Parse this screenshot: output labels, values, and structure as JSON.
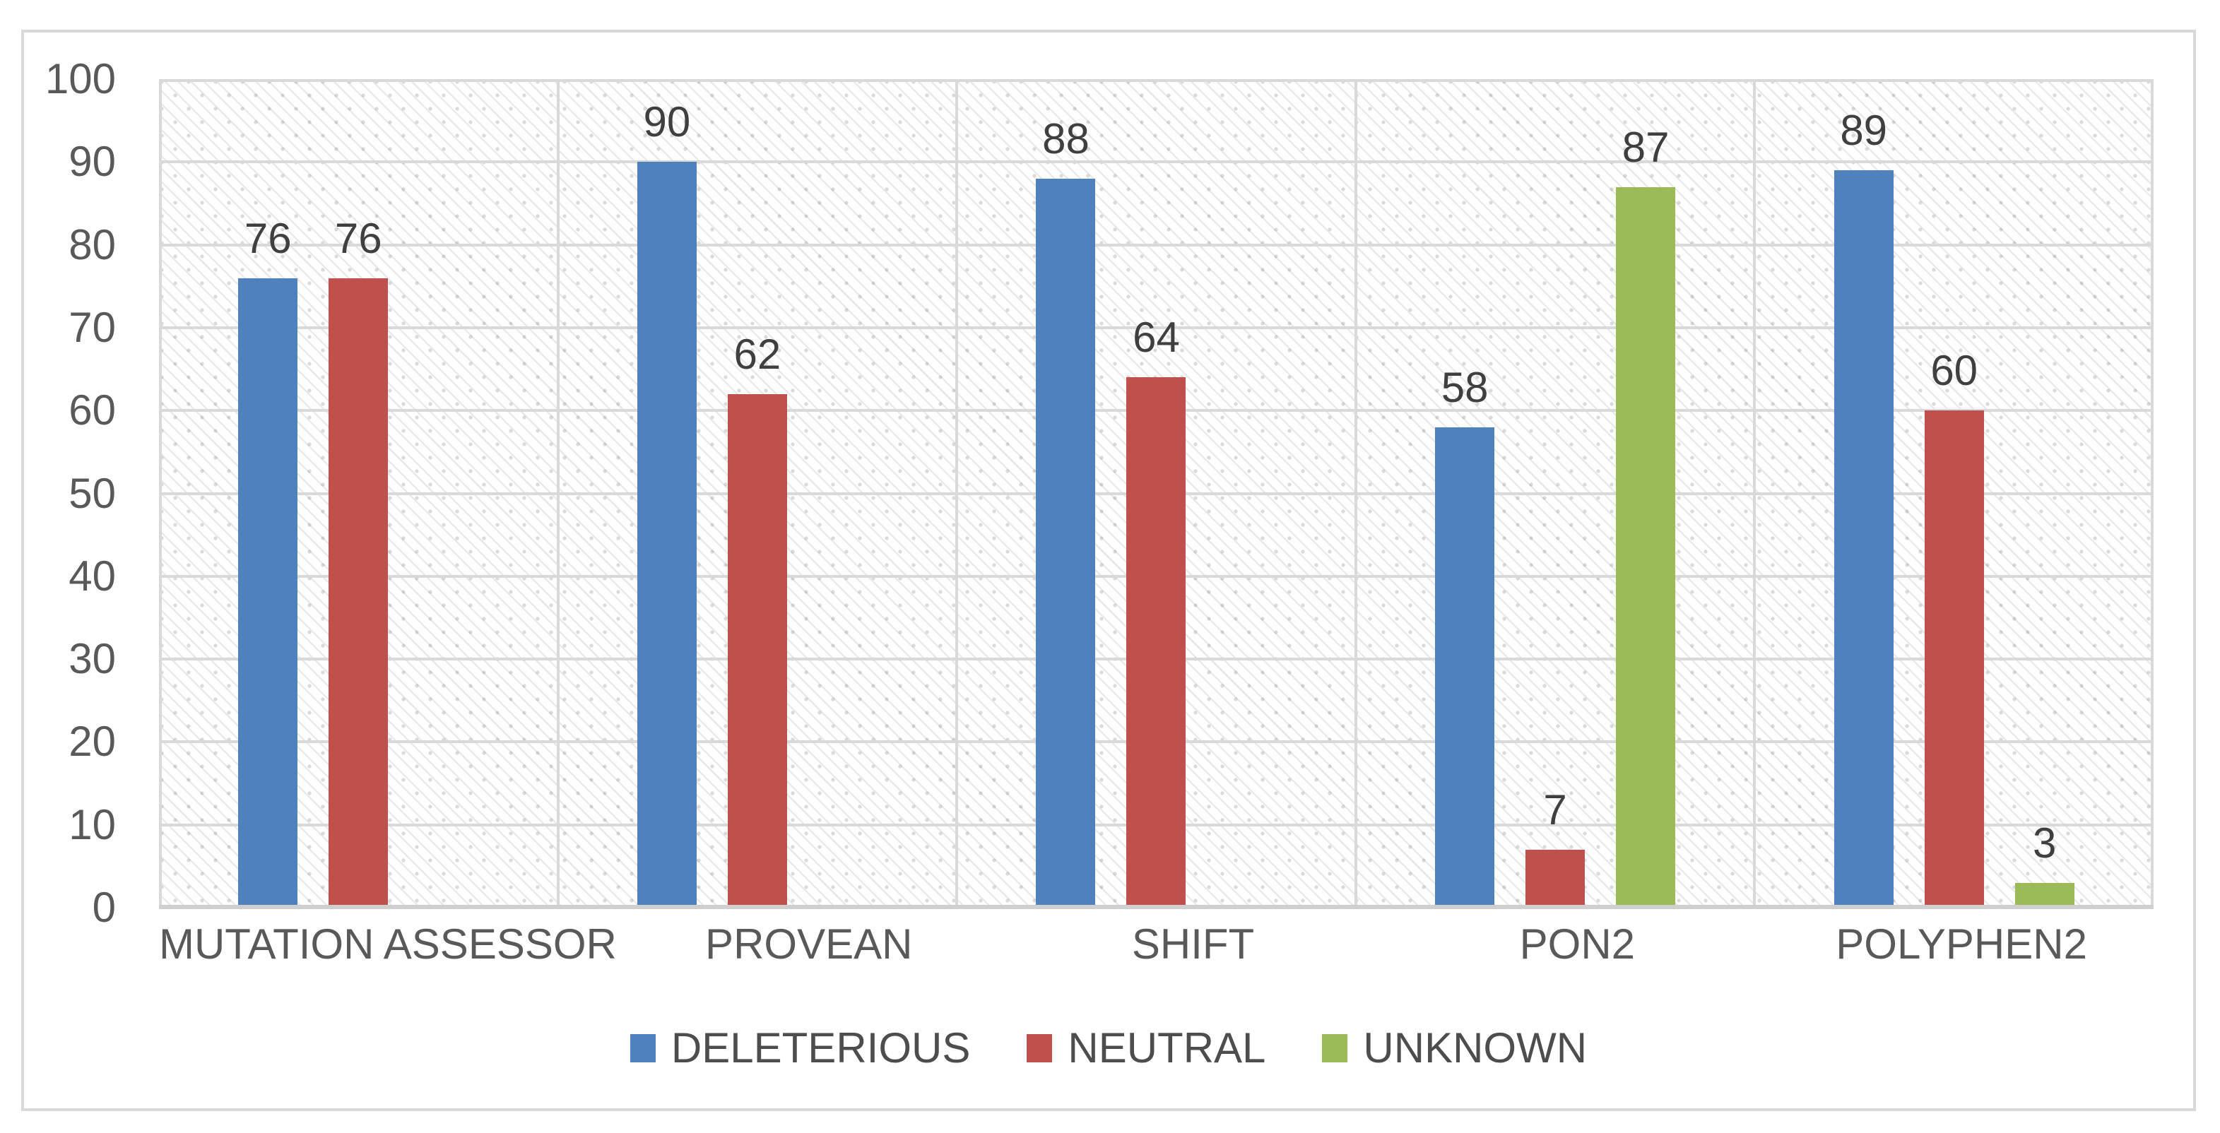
{
  "chart": {
    "background_color": "#ffffff",
    "frame_border_color": "#d9d9d9",
    "gridline_color": "#d9d9d9",
    "axis_line_color": "#cfcfcf",
    "tick_label_color": "#595959",
    "data_label_color": "#3f3f3f"
  },
  "chart_data": {
    "type": "bar",
    "title": "",
    "categories": [
      "MUTATION ASSESSOR",
      "PROVEAN",
      "SHIFT",
      "PON2",
      "POLYPHEN2"
    ],
    "series": [
      {
        "name": "DELETERIOUS",
        "color": "#4F81BD",
        "values": [
          76,
          90,
          88,
          58,
          89
        ]
      },
      {
        "name": "NEUTRAL",
        "color": "#C0504D",
        "values": [
          76,
          62,
          64,
          7,
          60
        ]
      },
      {
        "name": "UNKNOWN",
        "color": "#9BBB59",
        "values": [
          null,
          null,
          null,
          87,
          3
        ]
      }
    ],
    "ylim": [
      0,
      100
    ],
    "yticks": [
      0,
      10,
      20,
      30,
      40,
      50,
      60,
      70,
      80,
      90,
      100
    ],
    "grid": "horizontal-major+vertical-category-separators",
    "legend_position": "bottom",
    "data_labels": "above-bars",
    "plot_background": "diagonal-hatch-texture"
  }
}
